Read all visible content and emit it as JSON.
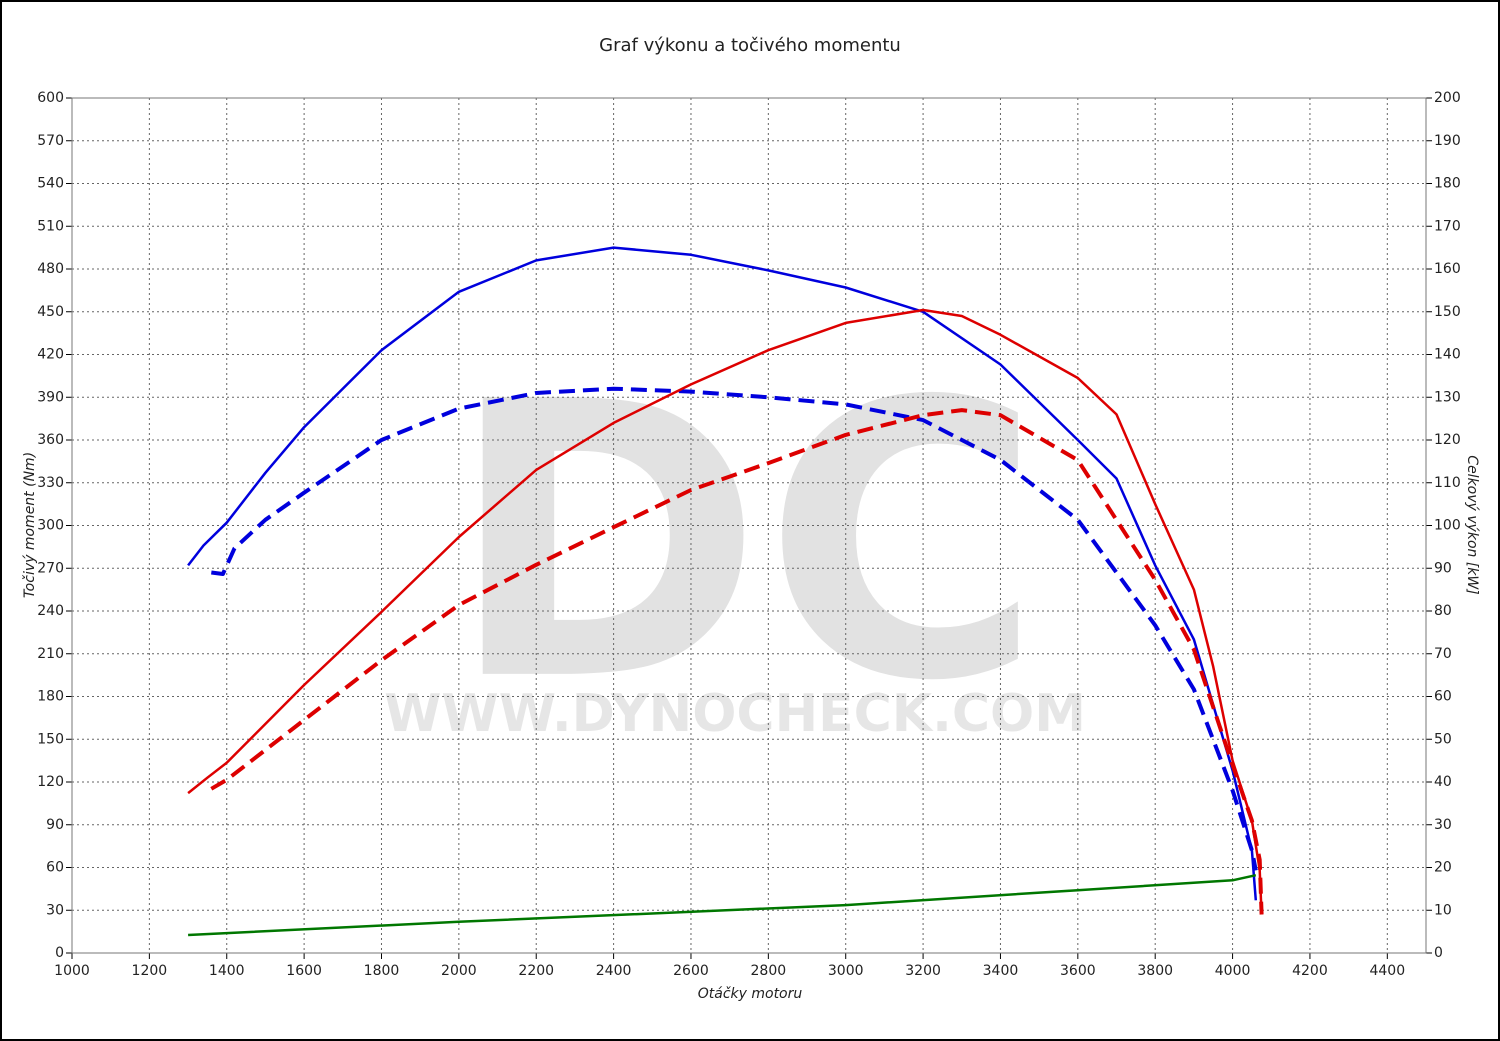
{
  "chart_data": {
    "type": "line",
    "title": "Graf výkonu a točivého momentu",
    "xlabel": "Otáčky motoru",
    "ylabel": "Točivý moment (Nm)",
    "y2label": "Celkový výkon [kW]",
    "watermark": {
      "logo": "DC",
      "url": "WWW.DYNOCHECK.COM"
    },
    "xlim": [
      1000,
      4500
    ],
    "xticks": [
      1000,
      1200,
      1400,
      1600,
      1800,
      2000,
      2200,
      2400,
      2600,
      2800,
      3000,
      3200,
      3400,
      3600,
      3800,
      4000,
      4200,
      4400
    ],
    "ylim": [
      0,
      600
    ],
    "yticks": [
      0,
      30,
      60,
      90,
      120,
      150,
      180,
      210,
      240,
      270,
      300,
      330,
      360,
      390,
      420,
      450,
      480,
      510,
      540,
      570,
      600
    ],
    "y2lim": [
      0,
      200
    ],
    "y2ticks": [
      0,
      10,
      20,
      30,
      40,
      50,
      60,
      70,
      80,
      90,
      100,
      110,
      120,
      130,
      140,
      150,
      160,
      170,
      180,
      190,
      200
    ],
    "grid": true,
    "series": [
      {
        "color": "#0000dd",
        "style": "solid",
        "axis": "y",
        "x": [
          1300,
          1340,
          1400,
          1500,
          1600,
          1800,
          2000,
          2200,
          2400,
          2600,
          2800,
          3000,
          3200,
          3400,
          3600,
          3700,
          3800,
          3900,
          4000,
          4050,
          4060
        ],
        "values": [
          272,
          286,
          302,
          337,
          369,
          423,
          464,
          486,
          495,
          490,
          479,
          467,
          450,
          413,
          360,
          333,
          272,
          220,
          128,
          72,
          37
        ]
      },
      {
        "color": "#0000dd",
        "style": "dashed",
        "axis": "y",
        "x": [
          1360,
          1390,
          1420,
          1500,
          1600,
          1800,
          2000,
          2200,
          2400,
          2600,
          2800,
          3000,
          3200,
          3400,
          3600,
          3800,
          3900,
          4000,
          4050,
          4060
        ],
        "values": [
          267,
          266,
          284,
          304,
          323,
          360,
          382,
          393,
          396,
          394,
          390,
          385,
          374,
          346,
          304,
          230,
          185,
          114,
          72,
          58
        ]
      },
      {
        "color": "#dd0000",
        "style": "solid",
        "axis": "y2",
        "x": [
          1300,
          1350,
          1400,
          1600,
          1800,
          2000,
          2200,
          2400,
          2600,
          2800,
          3000,
          3200,
          3300,
          3400,
          3600,
          3700,
          3800,
          3900,
          3950,
          4000,
          4050,
          4070,
          4075
        ],
        "values": [
          37.4,
          41,
          44.5,
          62.7,
          79.8,
          97.3,
          113,
          124,
          133,
          141,
          147.4,
          150.4,
          149,
          144.6,
          134.5,
          126,
          105,
          85,
          67,
          45,
          31,
          19.4,
          9
        ]
      },
      {
        "color": "#dd0000",
        "style": "dashed",
        "axis": "y2",
        "x": [
          1360,
          1400,
          1600,
          1800,
          2000,
          2200,
          2400,
          2600,
          2800,
          3000,
          3200,
          3300,
          3400,
          3600,
          3800,
          3900,
          4000,
          4050,
          4070,
          4075
        ],
        "values": [
          38.4,
          40.5,
          54.5,
          68.5,
          81.4,
          90.8,
          99.6,
          108.3,
          114.6,
          121.2,
          125.8,
          127,
          125.8,
          115.3,
          87.3,
          71,
          44,
          31,
          21.8,
          9
        ]
      },
      {
        "color": "#007700",
        "style": "solid",
        "axis": "y2",
        "x": [
          1300,
          2000,
          3000,
          3600,
          4000,
          4060
        ],
        "values": [
          4.2,
          7.3,
          11.2,
          14.7,
          17,
          18.2
        ]
      }
    ]
  }
}
